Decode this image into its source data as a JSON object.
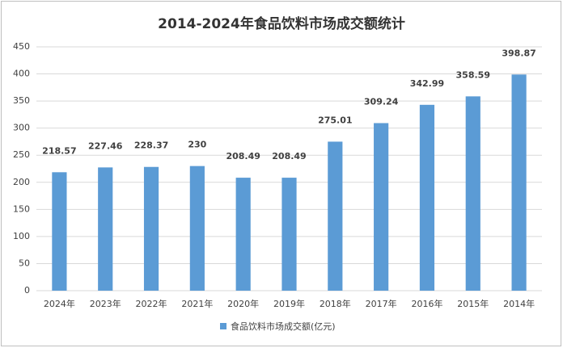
{
  "chart_data": {
    "type": "bar",
    "title": "2014-2024年食品饮料市场成交额统计",
    "categories": [
      "2024年",
      "2023年",
      "2022年",
      "2021年",
      "2020年",
      "2019年",
      "2018年",
      "2017年",
      "2016年",
      "2015年",
      "2014年"
    ],
    "series": [
      {
        "name": "食品饮料市场成交额(亿元)",
        "color": "#5b9bd5",
        "values": [
          218.57,
          227.46,
          228.37,
          230,
          208.49,
          208.49,
          275.01,
          309.24,
          342.99,
          358.59,
          398.87
        ]
      }
    ],
    "ylim": [
      0,
      450
    ],
    "yticks": [
      0,
      50,
      100,
      150,
      200,
      250,
      300,
      350,
      400,
      450
    ],
    "grid": true,
    "legend": "bottom"
  }
}
